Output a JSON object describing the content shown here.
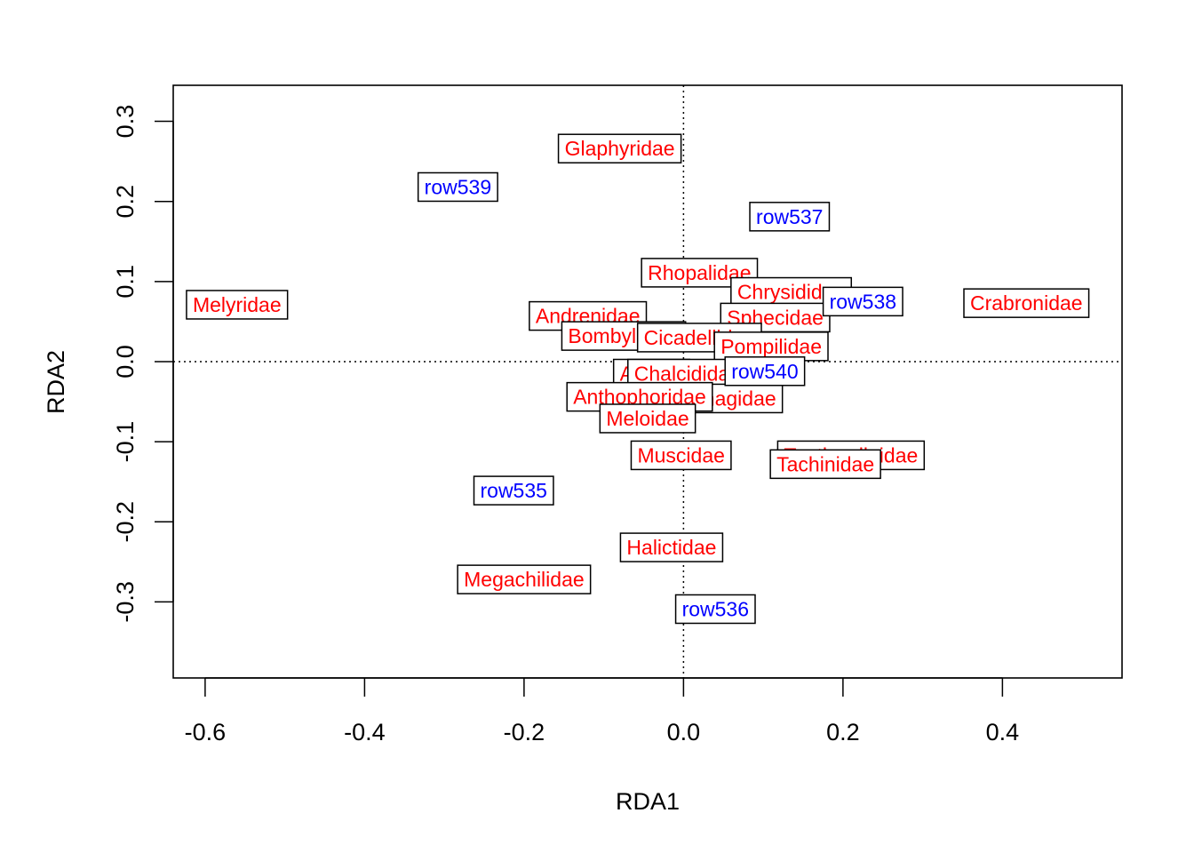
{
  "chart_data": {
    "type": "scatter",
    "xlabel": "RDA1",
    "ylabel": "RDA2",
    "xlim": [
      -0.64,
      0.55
    ],
    "ylim": [
      -0.395,
      0.345
    ],
    "x_ticks": [
      -0.6,
      -0.4,
      -0.2,
      0.0,
      0.2,
      0.4
    ],
    "x_tick_labels": [
      "-0.6",
      "-0.4",
      "-0.2",
      "0.0",
      "0.2",
      "0.4"
    ],
    "y_ticks": [
      -0.3,
      -0.2,
      -0.1,
      0.0,
      0.1,
      0.2,
      0.3
    ],
    "y_tick_labels": [
      "-0.3",
      "-0.2",
      "-0.1",
      "0.0",
      "0.1",
      "0.2",
      "0.3"
    ],
    "reference_lines": {
      "x": 0,
      "y": 0,
      "style": "dotted"
    },
    "grid": false,
    "series": [
      {
        "color": "#ff0000",
        "points": [
          {
            "label": "Glaphyridae",
            "x": -0.08,
            "y": 0.266
          },
          {
            "label": "Melyridae",
            "x": -0.56,
            "y": 0.071
          },
          {
            "label": "Crabronidae",
            "x": 0.43,
            "y": 0.073
          },
          {
            "label": "Rhopalidae",
            "x": 0.02,
            "y": 0.111
          },
          {
            "label": "Chrysididae",
            "x": 0.135,
            "y": 0.087
          },
          {
            "label": "Andrenidae",
            "x": -0.12,
            "y": 0.057
          },
          {
            "label": "Sphecidae",
            "x": 0.115,
            "y": 0.055
          },
          {
            "label": "Bombyliidae",
            "x": -0.075,
            "y": 0.032
          },
          {
            "label": "Cicadellidae",
            "x": 0.02,
            "y": 0.03
          },
          {
            "label": "Pompilidae",
            "x": 0.11,
            "y": 0.019
          },
          {
            "label": "Apidae",
            "x": -0.04,
            "y": -0.015
          },
          {
            "label": "Chalcididae",
            "x": 0.005,
            "y": -0.015
          },
          {
            "label": "Sarcophagidae",
            "x": 0.03,
            "y": -0.046
          },
          {
            "label": "Anthophoridae",
            "x": -0.055,
            "y": -0.044
          },
          {
            "label": "Meloidae",
            "x": -0.045,
            "y": -0.071
          },
          {
            "label": "Muscidae",
            "x": -0.003,
            "y": -0.117
          },
          {
            "label": "Tenthredinidae",
            "x": 0.21,
            "y": -0.117
          },
          {
            "label": "Tachinidae",
            "x": 0.178,
            "y": -0.128
          },
          {
            "label": "Halictidae",
            "x": -0.015,
            "y": -0.232
          },
          {
            "label": "Megachilidae",
            "x": -0.2,
            "y": -0.272
          }
        ]
      },
      {
        "color": "#0000ff",
        "points": [
          {
            "label": "row539",
            "x": -0.283,
            "y": 0.218
          },
          {
            "label": "row537",
            "x": 0.133,
            "y": 0.181
          },
          {
            "label": "row538",
            "x": 0.225,
            "y": 0.075
          },
          {
            "label": "row540",
            "x": 0.102,
            "y": -0.012
          },
          {
            "label": "row535",
            "x": -0.213,
            "y": -0.161
          },
          {
            "label": "row536",
            "x": 0.04,
            "y": -0.309
          }
        ]
      }
    ]
  }
}
